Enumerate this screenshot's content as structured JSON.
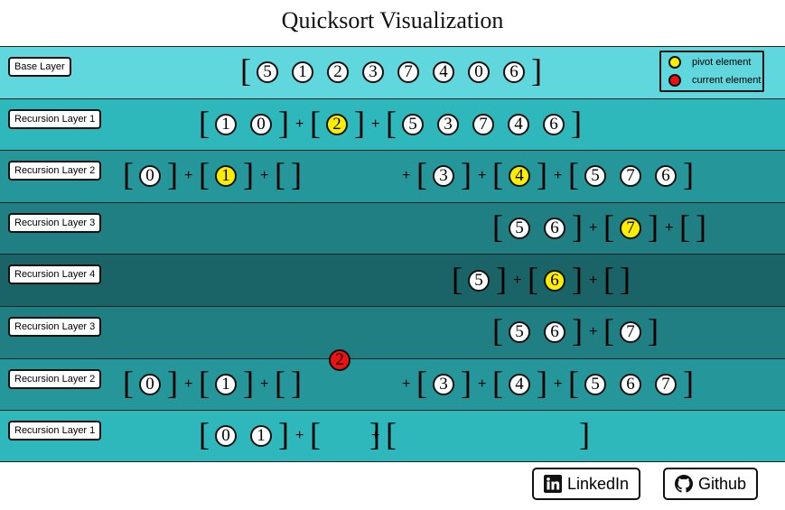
{
  "title": "Quicksort Visualization",
  "legend": {
    "pivot_label": "pivot element",
    "current_label": "current element"
  },
  "colors": {
    "pivot": "#ffee00",
    "current": "#ee1111"
  },
  "current_floating_value": "2",
  "layers": [
    {
      "label": "Base Layer",
      "bg": "#5fd7dc",
      "groups": [
        {
          "values": [
            "5",
            "1",
            "2",
            "3",
            "7",
            "4",
            "0",
            "6"
          ],
          "pivot_index": -1
        }
      ]
    },
    {
      "label": "Recursion Layer 1",
      "bg": "#2fb8bc",
      "groups": [
        {
          "values": [
            "1",
            "0"
          ],
          "pivot_index": -1
        },
        {
          "values": [
            "2"
          ],
          "pivot_index": 0
        },
        {
          "values": [
            "5",
            "3",
            "7",
            "4",
            "6"
          ],
          "pivot_index": -1
        }
      ]
    },
    {
      "label": "Recursion Layer 2",
      "bg": "#259699",
      "groups": [
        {
          "values": [
            "0"
          ],
          "pivot_index": -1
        },
        {
          "values": [
            "1"
          ],
          "pivot_index": 0
        },
        {
          "values": [],
          "pivot_index": -1
        },
        {
          "values": [
            "3"
          ],
          "pivot_index": -1
        },
        {
          "values": [
            "4"
          ],
          "pivot_index": 0
        },
        {
          "values": [
            "5",
            "7",
            "6"
          ],
          "pivot_index": -1
        }
      ]
    },
    {
      "label": "Recursion Layer 3",
      "bg": "#1f7f82",
      "groups": [
        {
          "values": [
            "5",
            "6"
          ],
          "pivot_index": -1
        },
        {
          "values": [
            "7"
          ],
          "pivot_index": 0
        },
        {
          "values": [],
          "pivot_index": -1
        }
      ]
    },
    {
      "label": "Recursion Layer 4",
      "bg": "#1a6467",
      "groups": [
        {
          "values": [
            "5"
          ],
          "pivot_index": -1
        },
        {
          "values": [
            "6"
          ],
          "pivot_index": 0
        },
        {
          "values": [],
          "pivot_index": -1
        }
      ]
    },
    {
      "label": "Recursion Layer 3",
      "bg": "#1f7f82",
      "groups": [
        {
          "values": [
            "5",
            "6"
          ],
          "pivot_index": -1
        },
        {
          "values": [
            "7"
          ],
          "pivot_index": -1
        }
      ]
    },
    {
      "label": "Recursion Layer 2",
      "bg": "#259699",
      "groups": [
        {
          "values": [
            "0"
          ],
          "pivot_index": -1
        },
        {
          "values": [
            "1"
          ],
          "pivot_index": -1
        },
        {
          "values": [],
          "pivot_index": -1
        },
        {
          "values": [
            "3"
          ],
          "pivot_index": -1
        },
        {
          "values": [
            "4"
          ],
          "pivot_index": -1
        },
        {
          "values": [
            "5",
            "6",
            "7"
          ],
          "pivot_index": -1
        }
      ]
    },
    {
      "label": "Recursion Layer 1",
      "bg": "#2fb8bc",
      "groups": [
        {
          "values": [
            "0",
            "1"
          ],
          "pivot_index": -1
        },
        {
          "values": [],
          "pivot_index": -1
        },
        {
          "values": [],
          "pivot_index": -1
        }
      ]
    }
  ],
  "footer": {
    "linkedin_label": "LinkedIn",
    "github_label": "Github"
  }
}
